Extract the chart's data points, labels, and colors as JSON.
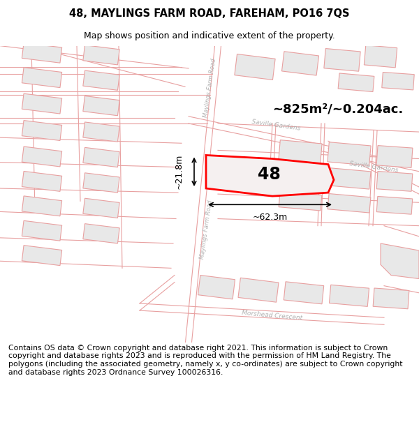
{
  "title": "48, MAYLINGS FARM ROAD, FAREHAM, PO16 7QS",
  "subtitle": "Map shows position and indicative extent of the property.",
  "footer": "Contains OS data © Crown copyright and database right 2021. This information is subject to Crown copyright and database rights 2023 and is reproduced with the permission of HM Land Registry. The polygons (including the associated geometry, namely x, y co-ordinates) are subject to Crown copyright and database rights 2023 Ordnance Survey 100026316.",
  "area_text": "~825m²/~0.204ac.",
  "number_text": "48",
  "width_text": "~62.3m",
  "height_text": "~21.8m",
  "title_fontsize": 10.5,
  "subtitle_fontsize": 9,
  "footer_fontsize": 7.8,
  "white_bg": "#ffffff",
  "map_bg": "#f8f8f8",
  "road_line_color": "#e8a0a0",
  "building_fill": "#e8e8e8",
  "building_edge": "#e8a0a0",
  "highlight_edge": "#ff0000",
  "highlight_fill": "#f5f0f0",
  "label_color": "#b0b0b0",
  "dim_color": "#000000"
}
